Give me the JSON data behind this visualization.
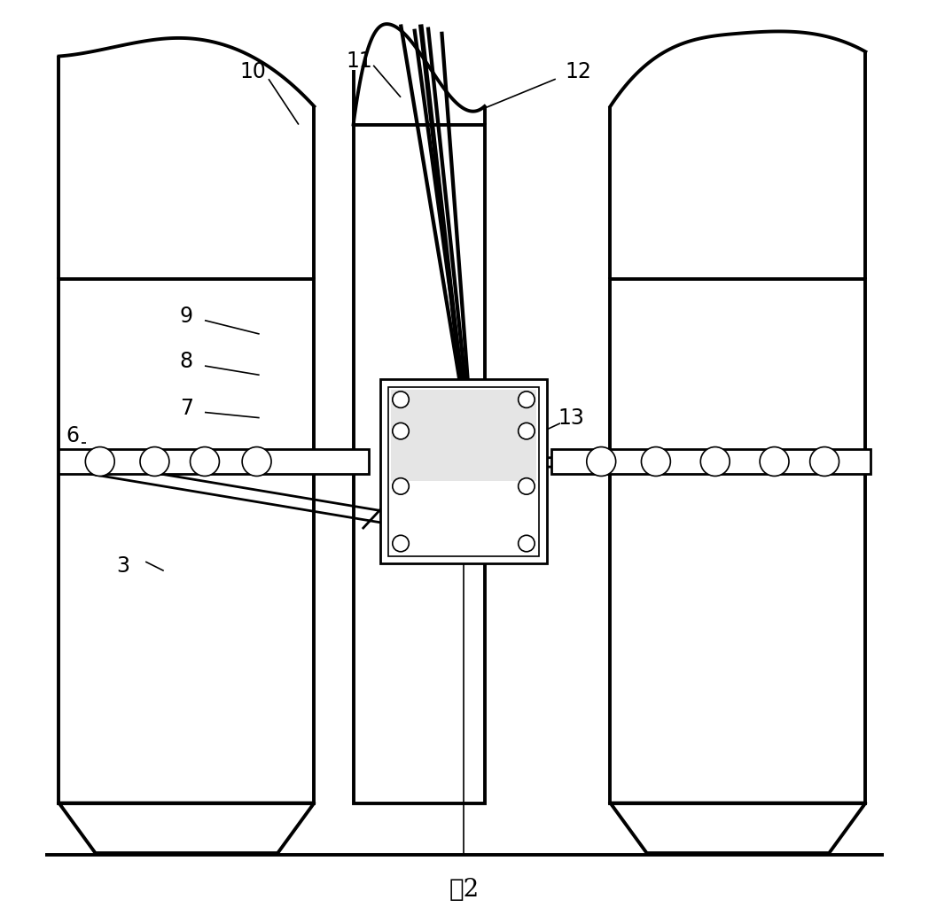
{
  "title": "图2",
  "bg_color": "#ffffff",
  "line_color": "#000000",
  "lw_thick": 2.8,
  "lw_med": 2.0,
  "lw_thin": 1.2,
  "figsize": [
    10.48,
    10.42
  ],
  "dpi": 100
}
